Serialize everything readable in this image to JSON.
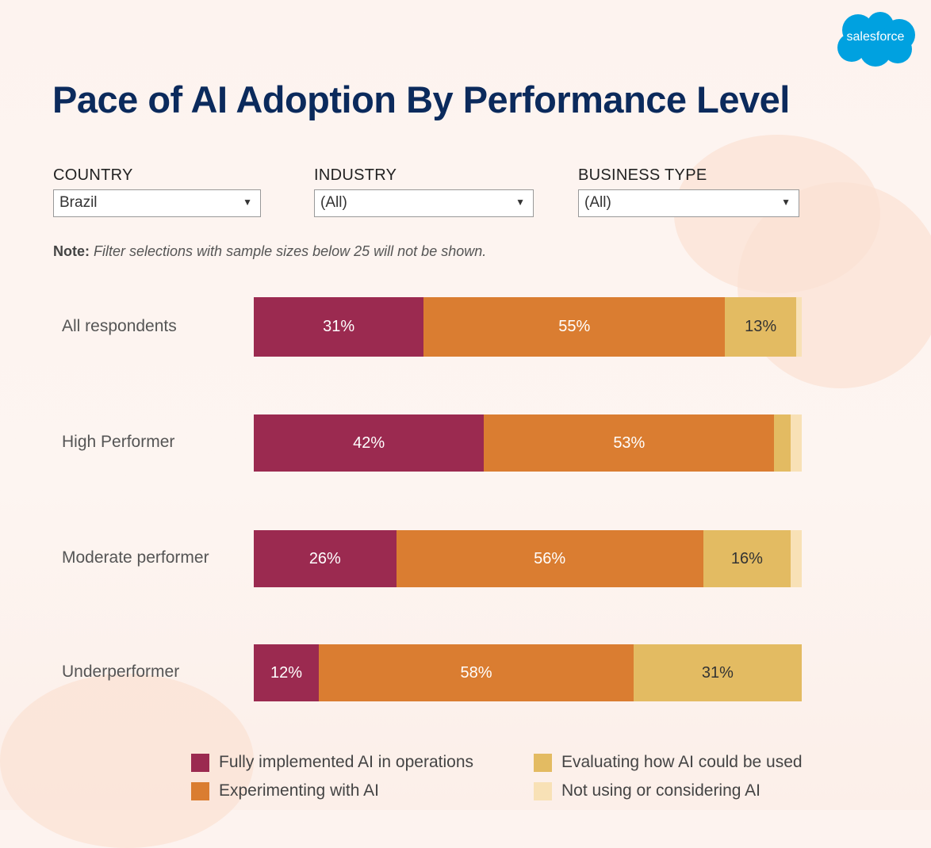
{
  "logo": "salesforce",
  "title": "Pace of AI Adoption By Performance Level",
  "filters": [
    {
      "label": "COUNTRY",
      "value": "Brazil"
    },
    {
      "label": "INDUSTRY",
      "value": "(All)"
    },
    {
      "label": "BUSINESS TYPE",
      "value": "(All)"
    }
  ],
  "note": {
    "prefix": "Note:",
    "text": "Filter selections with sample sizes below 25 will not be shown."
  },
  "colors": {
    "fully": "#9b2a50",
    "experimenting": "#da7d31",
    "evaluating": "#e3bb62",
    "not_using": "#f8e1b6"
  },
  "chart_data": {
    "type": "bar",
    "orientation": "horizontal-stacked-100",
    "categories": [
      "All respondents",
      "High Performer",
      "Moderate performer",
      "Underperformer"
    ],
    "series": [
      {
        "name": "Fully implemented AI in operations",
        "values": [
          31,
          42,
          26,
          12
        ]
      },
      {
        "name": "Experimenting with AI",
        "values": [
          55,
          53,
          56,
          58
        ]
      },
      {
        "name": "Evaluating how AI could be used",
        "values": [
          13,
          3,
          16,
          31
        ]
      },
      {
        "name": "Not using or considering AI",
        "values": [
          1,
          2,
          2,
          0
        ]
      }
    ],
    "data_labels": [
      [
        "31%",
        "55%",
        "13%",
        ""
      ],
      [
        "42%",
        "53%",
        "",
        ""
      ],
      [
        "26%",
        "56%",
        "16%",
        ""
      ],
      [
        "12%",
        "58%",
        "31%",
        ""
      ]
    ],
    "xlim": [
      0,
      100
    ],
    "legend": "bottom"
  }
}
